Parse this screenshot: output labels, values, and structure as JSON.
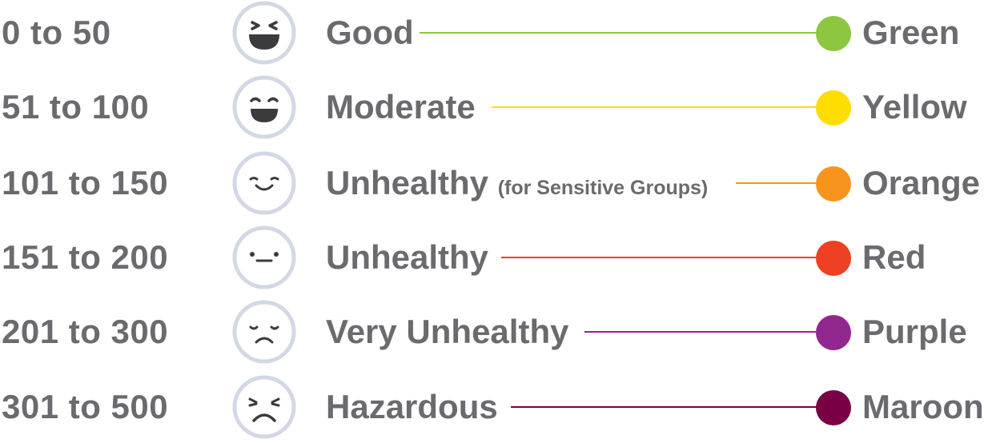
{
  "rows": [
    {
      "range": "0 to 50",
      "category": "Good",
      "sub": "",
      "color_name": "Green",
      "color": "#8dc63f",
      "face": "laughing-face-icon"
    },
    {
      "range": "51 to 100",
      "category": "Moderate",
      "sub": "",
      "color_name": "Yellow",
      "color": "#ffdd00",
      "face": "grinning-face-icon"
    },
    {
      "range": "101 to 150",
      "category": "Unhealthy",
      "sub": "(for Sensitive Groups)",
      "color_name": "Orange",
      "color": "#f7941d",
      "face": "smiling-face-icon"
    },
    {
      "range": "151 to 200",
      "category": "Unhealthy",
      "sub": "",
      "color_name": "Red",
      "color": "#ee4023",
      "face": "neutral-face-icon"
    },
    {
      "range": "201 to 300",
      "category": "Very Unhealthy",
      "sub": "",
      "color_name": "Purple",
      "color": "#92278f",
      "face": "sad-face-icon"
    },
    {
      "range": "301 to 500",
      "category": "Hazardous",
      "sub": "",
      "color_name": "Maroon",
      "color": "#7a0045",
      "face": "distressed-face-icon"
    }
  ],
  "face_ring_color": "#d2d8e4",
  "face_feature_color": "#3b3b3d"
}
